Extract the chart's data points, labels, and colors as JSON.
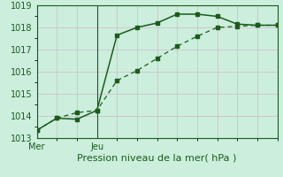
{
  "xlabel": "Pression niveau de la mer( hPa )",
  "bg_color": "#cceedd",
  "grid_color_v": "#d4b8c8",
  "grid_color_h": "#d4b8c8",
  "line_color": "#1a5c1a",
  "axis_color": "#1a5c1a",
  "x_tick_labels": [
    "Mer",
    "Jeu"
  ],
  "x_tick_pos": [
    0,
    3
  ],
  "ylim": [
    1013.0,
    1019.0
  ],
  "xlim": [
    0,
    12
  ],
  "yticks": [
    1013,
    1014,
    1015,
    1016,
    1017,
    1018,
    1019
  ],
  "vline_x": [
    0,
    3
  ],
  "line1_x": [
    0,
    1,
    2,
    3,
    4,
    5,
    6,
    7,
    8,
    9,
    10,
    11,
    12
  ],
  "line1_y": [
    1013.35,
    1013.9,
    1014.15,
    1014.25,
    1015.6,
    1016.05,
    1016.6,
    1017.15,
    1017.6,
    1018.0,
    1018.05,
    1018.1,
    1018.1
  ],
  "line2_x": [
    0,
    1,
    2,
    3,
    4,
    5,
    6,
    7,
    8,
    9,
    10,
    11,
    12
  ],
  "line2_y": [
    1013.35,
    1013.9,
    1013.85,
    1014.25,
    1017.65,
    1018.0,
    1018.2,
    1018.6,
    1018.6,
    1018.5,
    1018.15,
    1018.1,
    1018.1
  ],
  "xlabel_fontsize": 8,
  "tick_fontsize": 7
}
